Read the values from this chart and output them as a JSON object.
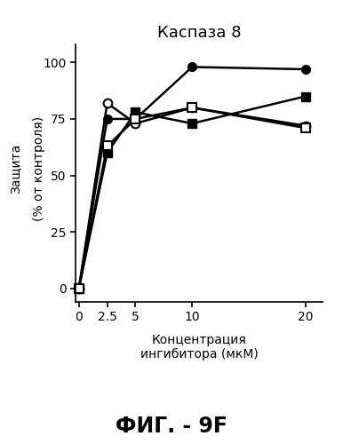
{
  "title": "Каспаза 8",
  "xlabel": "Концентрация\nингибитора (мкМ)",
  "ylabel_top": "Защита",
  "ylabel_bottom": "(% от контроля)",
  "x": [
    0,
    2.5,
    5,
    10,
    20
  ],
  "series": [
    {
      "label": "filled_circle",
      "y": [
        0,
        75,
        75,
        98,
        97
      ],
      "marker": "o",
      "filled": true,
      "color": "black",
      "linewidth": 1.8
    },
    {
      "label": "open_circle",
      "y": [
        0,
        82,
        73,
        80,
        72
      ],
      "marker": "o",
      "filled": false,
      "color": "black",
      "linewidth": 1.8
    },
    {
      "label": "filled_square",
      "y": [
        0,
        60,
        78,
        73,
        85
      ],
      "marker": "s",
      "filled": true,
      "color": "black",
      "linewidth": 1.8
    },
    {
      "label": "open_square",
      "y": [
        0,
        63,
        75,
        80,
        71
      ],
      "marker": "s",
      "filled": false,
      "color": "black",
      "linewidth": 1.8
    }
  ],
  "xlim": [
    -0.3,
    21.5
  ],
  "ylim": [
    -6,
    108
  ],
  "yticks": [
    0,
    25,
    50,
    75,
    100
  ],
  "xticks": [
    0,
    2.5,
    5,
    10,
    20
  ],
  "xtick_labels": [
    "0",
    "2.5",
    "5",
    "10",
    "20"
  ],
  "ytick_labels": [
    "0",
    "25",
    "50",
    "75",
    "100"
  ],
  "caption": "ФИГ. - 9F",
  "background_color": "#ffffff",
  "marker_size": 7
}
